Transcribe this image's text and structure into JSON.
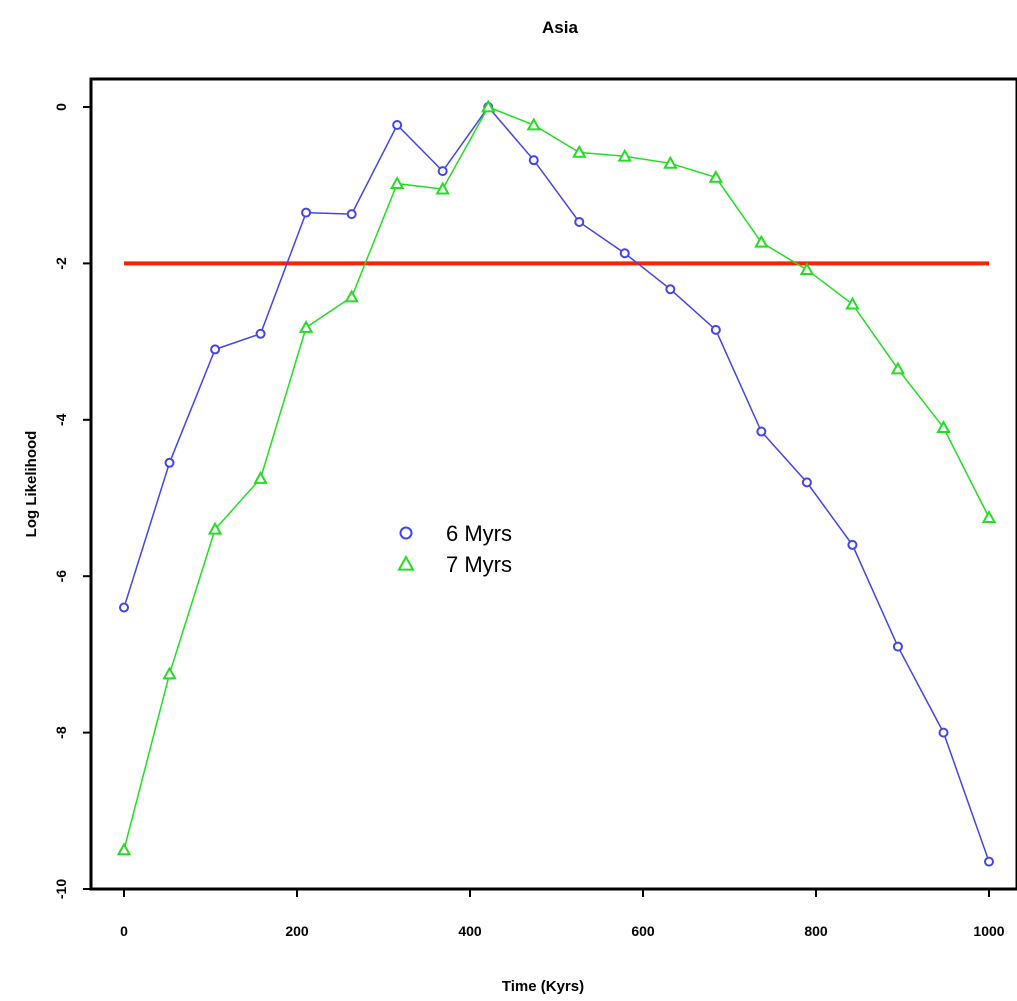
{
  "chart_data": {
    "type": "line",
    "title": "Asia",
    "xlabel": "Time (Kyrs)",
    "ylabel": "Log Likelihood",
    "xlim": [
      0,
      1000
    ],
    "ylim": [
      -10,
      0
    ],
    "xticks": [
      "0",
      "200",
      "400",
      "600",
      "800",
      "1000"
    ],
    "yticks": [
      "0",
      "-2",
      "-4",
      "-6",
      "-8",
      "-10"
    ],
    "grid": false,
    "legend_position": "center-left",
    "x": [
      0,
      52.6,
      105.3,
      157.9,
      210.5,
      263.2,
      315.8,
      368.4,
      421.1,
      473.7,
      526.3,
      578.9,
      631.6,
      684.2,
      736.8,
      789.5,
      842.1,
      894.7,
      947.4,
      1000
    ],
    "series": [
      {
        "name": "6 Myrs",
        "color": "#4444ee",
        "marker": "circle",
        "values": [
          -6.4,
          -4.55,
          -3.1,
          -2.9,
          -1.35,
          -1.37,
          -0.23,
          -0.82,
          0.0,
          -0.68,
          -1.47,
          -1.87,
          -2.33,
          -2.85,
          -4.15,
          -4.8,
          -5.6,
          -6.9,
          -8.0,
          -9.65
        ]
      },
      {
        "name": "7 Myrs",
        "color": "#22dd22",
        "marker": "triangle",
        "values": [
          -9.5,
          -7.25,
          -5.4,
          -4.75,
          -2.82,
          -2.43,
          -0.98,
          -1.05,
          0.0,
          -0.23,
          -0.58,
          -0.63,
          -0.72,
          -0.9,
          -1.73,
          -2.08,
          -2.52,
          -3.35,
          -4.1,
          -5.25
        ]
      }
    ],
    "reference_line": {
      "y": -2,
      "color": "#ff2200"
    }
  }
}
